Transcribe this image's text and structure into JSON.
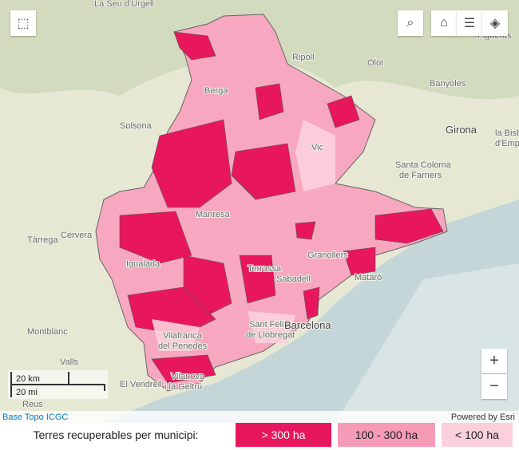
{
  "map": {
    "places": [
      "La Seu d'Urgell",
      "Ripoll",
      "Olot",
      "Figueres",
      "Banyoles",
      "Berga",
      "Solsona",
      "Vic",
      "Girona",
      "la Bisbal",
      "d'Empordà",
      "Santa Coloma",
      "de Farners",
      "Manresa",
      "Tàrrega",
      "Cervera",
      "Igualada",
      "Granollers",
      "Mataró",
      "Terrassa",
      "Sabadell",
      "Sant Feliu",
      "de Llobregat",
      "Barcelona",
      "Vilafranca",
      "del Penedès",
      "Montblanc",
      "Valls",
      "El Vendrell",
      "Vilanova",
      "i la Geltrú",
      "Reus"
    ],
    "scale": {
      "metric": "20 km",
      "imperial": "20 mi"
    },
    "attribution": {
      "source": "Base Topo ICGC",
      "powered": "Powered by Esri"
    }
  },
  "legend": {
    "title": "Terres recuperables per municipi:",
    "classes": [
      "> 300 ha",
      "100 - 300 ha",
      "< 100 ha"
    ]
  }
}
